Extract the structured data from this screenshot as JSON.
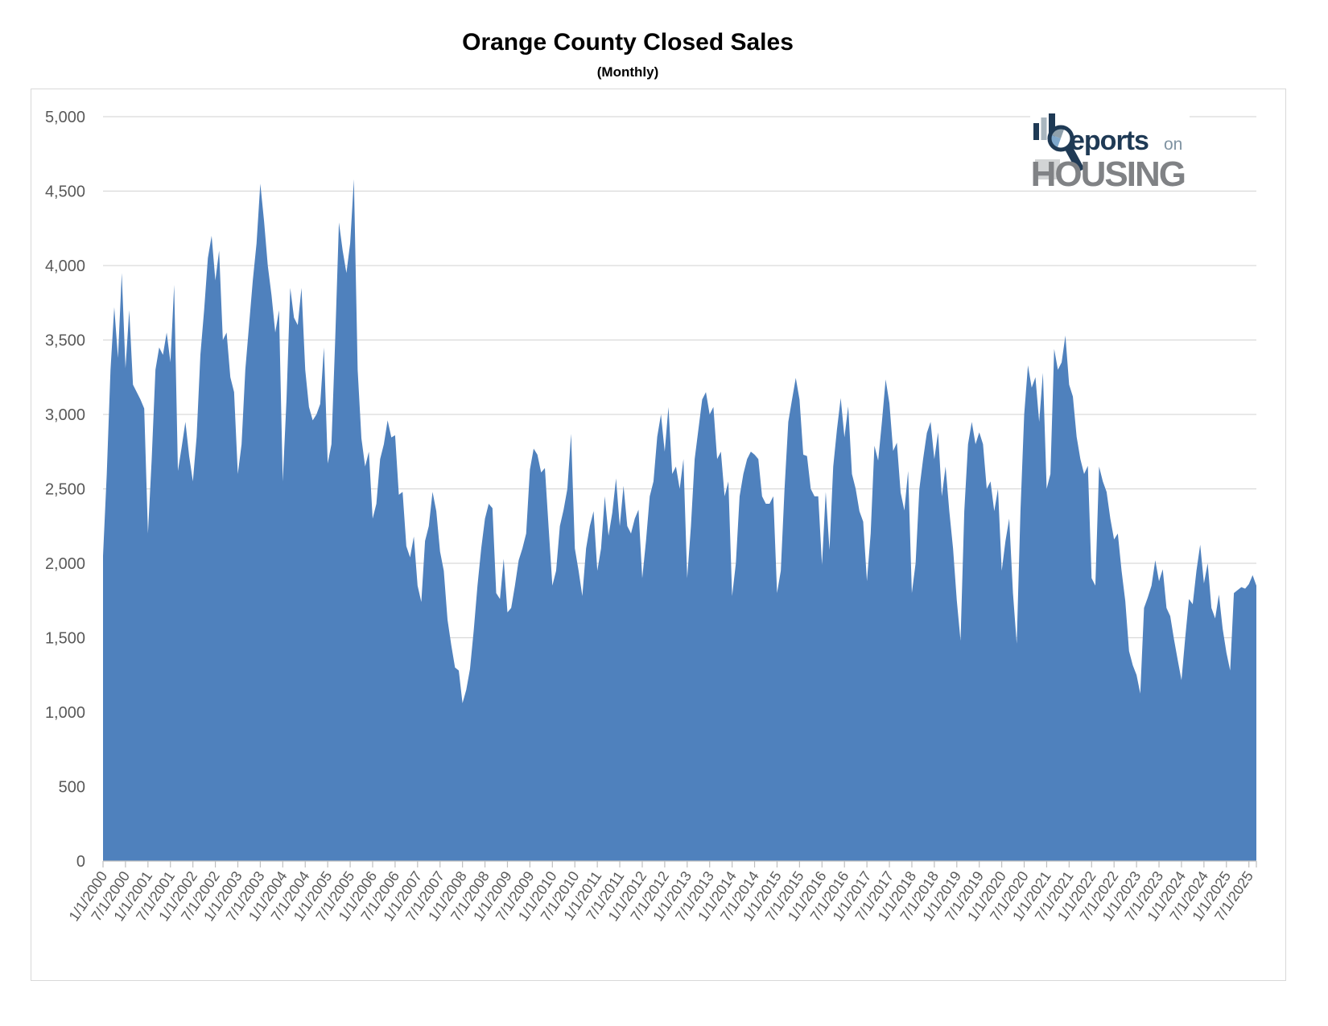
{
  "header": {
    "title": "Orange County Closed Sales",
    "subtitle": "(Monthly)"
  },
  "logo": {
    "brand_full": "Reports on HOUSING",
    "reports_text": "eports",
    "on_text": "on",
    "housing_text": "HOUSING",
    "navy": "#1F3A55",
    "gray": "#808285",
    "blue_gray": "#7F93A2",
    "square_gray": "#D2D4D5",
    "pie_blue": "#7FA8CC",
    "pie_gray": "#8FA0AC",
    "bar_gray": "#A9B6BF"
  },
  "chart_data": {
    "type": "area",
    "title": "Orange County Closed Sales",
    "subtitle": "(Monthly)",
    "series_name": "Closed Sales",
    "frequency": "monthly",
    "start_month": "1/1/2000",
    "end_month": "9/1/2025",
    "ylim": [
      0,
      5000
    ],
    "ytick_interval": 500,
    "grid": true,
    "legend": false,
    "area_color": "#4F81BD",
    "gridline_color": "#D9D9D9",
    "axis_color": "#BFBFBF",
    "label_color": "#595959",
    "y_tick_labels": [
      "5,000",
      "4,500",
      "4,000",
      "3,500",
      "3,000",
      "2,500",
      "2,000",
      "1,500",
      "1,000",
      "500",
      "0"
    ],
    "x_tick_labels": [
      "1/1/2000",
      "7/1/2000",
      "1/1/2001",
      "7/1/2001",
      "1/1/2002",
      "7/1/2002",
      "1/1/2003",
      "7/1/2003",
      "1/1/2004",
      "7/1/2004",
      "1/1/2005",
      "7/1/2005",
      "1/1/2006",
      "7/1/2006",
      "1/1/2007",
      "7/1/2007",
      "1/1/2008",
      "7/1/2008",
      "1/1/2009",
      "7/1/2009",
      "1/1/2010",
      "7/1/2010",
      "1/1/2011",
      "7/1/2011",
      "1/1/2012",
      "7/1/2012",
      "1/1/2013",
      "7/1/2013",
      "1/1/2014",
      "7/1/2014",
      "1/1/2015",
      "7/1/2015",
      "1/1/2016",
      "7/1/2016",
      "1/1/2017",
      "7/1/2017",
      "1/1/2018",
      "7/1/2018",
      "1/1/2019",
      "7/1/2019",
      "1/1/2020",
      "7/1/2020",
      "1/1/2021",
      "7/1/2021",
      "1/1/2022",
      "7/1/2022",
      "1/1/2023",
      "7/1/2023",
      "1/1/2024",
      "7/1/2024",
      "1/1/2025",
      "7/1/2025"
    ],
    "values": [
      2050,
      2600,
      3300,
      3720,
      3380,
      3950,
      3310,
      3700,
      3200,
      3150,
      3100,
      3040,
      2200,
      2700,
      3300,
      3450,
      3400,
      3550,
      3350,
      3870,
      2620,
      2780,
      2950,
      2720,
      2550,
      2850,
      3400,
      3700,
      4050,
      4200,
      3900,
      4100,
      3500,
      3550,
      3250,
      3150,
      2600,
      2800,
      3300,
      3600,
      3900,
      4150,
      4550,
      4300,
      4000,
      3800,
      3550,
      3700,
      2550,
      3100,
      3850,
      3650,
      3600,
      3850,
      3300,
      3050,
      2960,
      3000,
      3070,
      3450,
      2670,
      2800,
      3500,
      4290,
      4100,
      3950,
      4150,
      4580,
      3300,
      2840,
      2650,
      2750,
      2300,
      2400,
      2700,
      2800,
      2960,
      2845,
      2860,
      2460,
      2480,
      2115,
      2040,
      2180,
      1850,
      1740,
      2150,
      2250,
      2480,
      2350,
      2080,
      1950,
      1620,
      1450,
      1300,
      1280,
      1060,
      1150,
      1290,
      1550,
      1850,
      2100,
      2300,
      2400,
      2370,
      1800,
      1760,
      2030,
      1670,
      1700,
      1850,
      2020,
      2100,
      2200,
      2630,
      2770,
      2730,
      2610,
      2640,
      2240,
      1850,
      1950,
      2250,
      2360,
      2500,
      2870,
      2100,
      1950,
      1780,
      2100,
      2250,
      2350,
      1950,
      2100,
      2450,
      2185,
      2340,
      2570,
      2250,
      2520,
      2250,
      2200,
      2300,
      2360,
      1900,
      2150,
      2450,
      2550,
      2850,
      3000,
      2750,
      3050,
      2600,
      2650,
      2500,
      2700,
      1900,
      2250,
      2700,
      2900,
      3100,
      3150,
      3000,
      3050,
      2700,
      2750,
      2450,
      2550,
      1780,
      2000,
      2450,
      2600,
      2700,
      2750,
      2730,
      2700,
      2450,
      2400,
      2400,
      2450,
      1800,
      1950,
      2500,
      2950,
      3100,
      3245,
      3100,
      2730,
      2720,
      2500,
      2450,
      2450,
      1990,
      2480,
      2090,
      2650,
      2900,
      3110,
      2846,
      3054,
      2600,
      2500,
      2350,
      2280,
      1880,
      2200,
      2790,
      2690,
      2950,
      3235,
      3075,
      2755,
      2810,
      2475,
      2355,
      2620,
      1800,
      2000,
      2500,
      2700,
      2875,
      2950,
      2700,
      2880,
      2450,
      2650,
      2350,
      2100,
      1750,
      1480,
      2350,
      2800,
      2950,
      2800,
      2880,
      2800,
      2500,
      2550,
      2350,
      2500,
      1950,
      2150,
      2300,
      1800,
      1460,
      2350,
      3000,
      3330,
      3180,
      3250,
      2950,
      3280,
      2500,
      2600,
      3440,
      3300,
      3350,
      3530,
      3200,
      3120,
      2850,
      2700,
      2600,
      2655,
      1900,
      1850,
      2650,
      2550,
      2480,
      2300,
      2160,
      2200,
      1950,
      1745,
      1410,
      1315,
      1250,
      1125,
      1700,
      1770,
      1850,
      2020,
      1880,
      1960,
      1700,
      1645,
      1490,
      1350,
      1215,
      1500,
      1760,
      1725,
      1950,
      2125,
      1865,
      2000,
      1700,
      1630,
      1790,
      1560,
      1400,
      1280,
      1800,
      1820,
      1840,
      1830,
      1860,
      1920,
      1850
    ]
  }
}
